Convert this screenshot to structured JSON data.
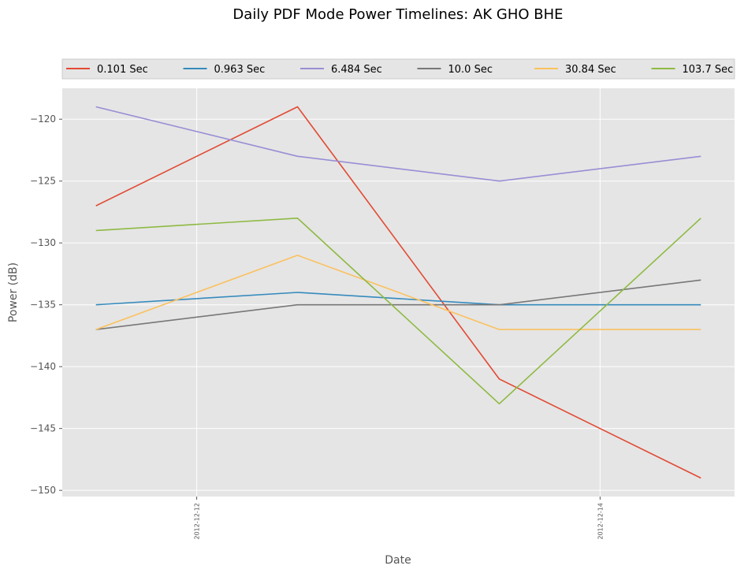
{
  "chart_data": {
    "type": "line",
    "title": "Daily PDF Mode Power Timelines: AK GHO  BHE",
    "xlabel": "Date",
    "ylabel": "Power (dB)",
    "x": [
      "2012-12-11T12:00",
      "2012-12-12T12:00",
      "2012-12-13T12:00",
      "2012-12-14T12:00"
    ],
    "x_ticks": [
      "2012-12-12",
      "2012-12-14"
    ],
    "xlim": [
      "2012-12-11T08:00",
      "2012-12-14T16:00"
    ],
    "ylim": [
      -150.5,
      -117.5
    ],
    "y_ticks": [
      -120,
      -125,
      -130,
      -135,
      -140,
      -145,
      -150
    ],
    "y_tick_labels": [
      "−120",
      "−125",
      "−130",
      "−135",
      "−140",
      "−145",
      "−150"
    ],
    "grid": true,
    "legend_position": "top",
    "series": [
      {
        "name": "0.101 Sec",
        "color": "#E24A33",
        "values": [
          -127,
          -119,
          -141,
          -149
        ]
      },
      {
        "name": "0.963 Sec",
        "color": "#348ABD",
        "values": [
          -135,
          -134,
          -135,
          -135
        ]
      },
      {
        "name": "6.484 Sec",
        "color": "#988ED5",
        "values": [
          -119,
          -123,
          -125,
          -123
        ]
      },
      {
        "name": "10.0 Sec",
        "color": "#777777",
        "values": [
          -137,
          -135,
          -135,
          -133
        ]
      },
      {
        "name": "30.84 Sec",
        "color": "#FBC15E",
        "values": [
          -137,
          -131,
          -137,
          -137
        ]
      },
      {
        "name": "103.7 Sec",
        "color": "#8EBA42",
        "values": [
          -129,
          -128,
          -143,
          -128
        ]
      }
    ]
  }
}
